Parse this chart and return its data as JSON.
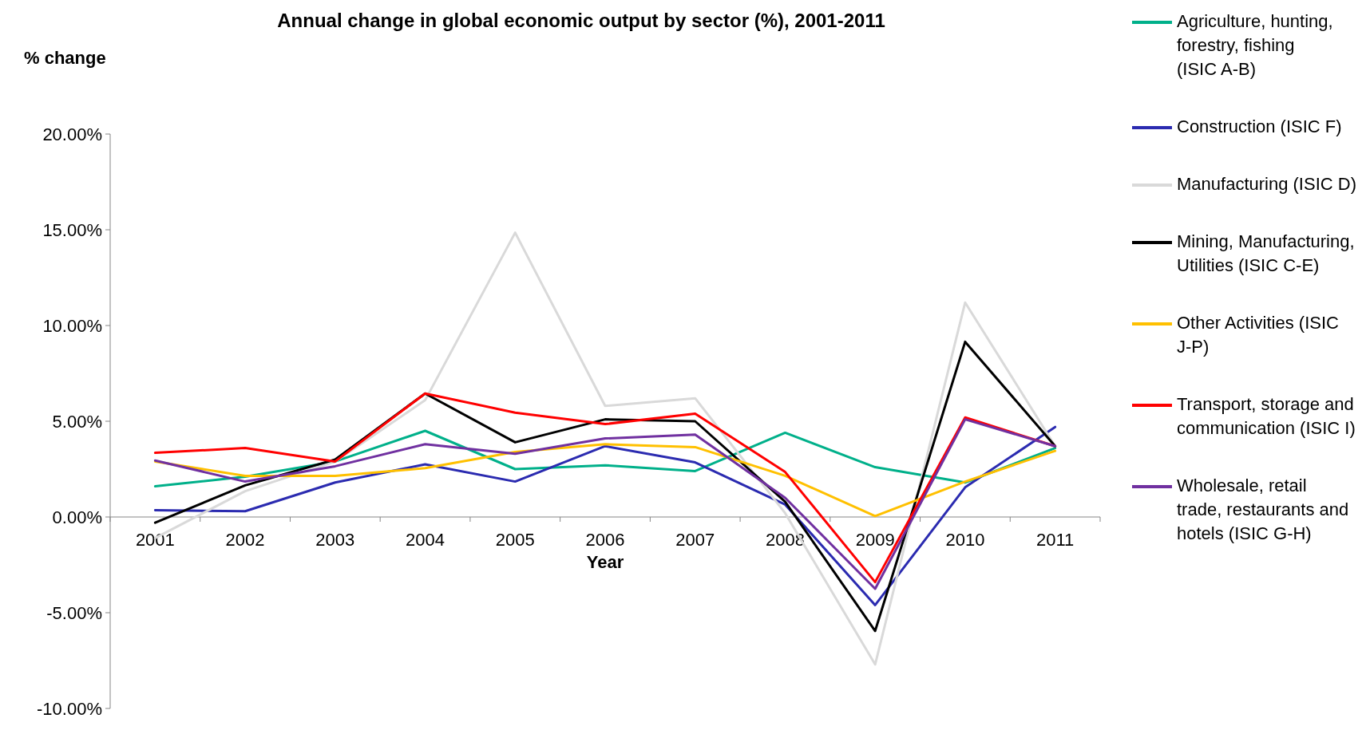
{
  "chart_data": {
    "type": "line",
    "title": "Annual change in global economic output by sector (%), 2001-2011",
    "xlabel": "Year",
    "ylabel": "% change",
    "categories": [
      "2001",
      "2002",
      "2003",
      "2004",
      "2005",
      "2006",
      "2007",
      "2008",
      "2009",
      "2010",
      "2011"
    ],
    "ylim": [
      -10,
      20
    ],
    "yticks": [
      {
        "value": -10,
        "label": "-10.00%"
      },
      {
        "value": -5,
        "label": "-5.00%"
      },
      {
        "value": 0,
        "label": "0.00%"
      },
      {
        "value": 5,
        "label": "5.00%"
      },
      {
        "value": 10,
        "label": "10.00%"
      },
      {
        "value": 15,
        "label": "15.00%"
      },
      {
        "value": 20,
        "label": "20.00%"
      }
    ],
    "grid": false,
    "legend": "right",
    "marker": "none",
    "line_style": "solid",
    "series": [
      {
        "name": "Agriculture, hunting, forestry, fishing (ISIC A-B)",
        "color": "#00b08a",
        "values": [
          1.6,
          2.1,
          2.9,
          4.5,
          2.5,
          2.7,
          2.4,
          4.4,
          2.6,
          1.8,
          3.6
        ]
      },
      {
        "name": "Construction (ISIC F)",
        "color": "#2b2bb0",
        "values": [
          0.35,
          0.3,
          1.8,
          2.75,
          1.85,
          3.7,
          2.85,
          0.65,
          -4.6,
          1.55,
          4.7
        ]
      },
      {
        "name": "Manufacturing (ISIC D)",
        "color": "#d9d9d9",
        "values": [
          -1.1,
          1.35,
          2.9,
          6.1,
          14.85,
          5.8,
          6.2,
          0.2,
          -7.7,
          11.2,
          3.7
        ]
      },
      {
        "name": "Mining, Manufacturing, Utilities (ISIC C-E)",
        "color": "#000000",
        "values": [
          -0.3,
          1.65,
          3.0,
          6.45,
          3.9,
          5.1,
          5.0,
          0.8,
          -5.95,
          9.15,
          3.7
        ]
      },
      {
        "name": "Other Activities (ISIC J-P)",
        "color": "#ffc000",
        "values": [
          2.9,
          2.15,
          2.15,
          2.55,
          3.4,
          3.8,
          3.65,
          2.15,
          0.05,
          1.85,
          3.45
        ]
      },
      {
        "name": "Transport, storage and communication (ISIC I)",
        "color": "#ff0000",
        "values": [
          3.35,
          3.6,
          2.9,
          6.45,
          5.45,
          4.85,
          5.4,
          2.35,
          -3.4,
          5.2,
          3.7
        ]
      },
      {
        "name": "Wholesale, retail trade, restaurants and hotels (ISIC G-H)",
        "color": "#7030a0",
        "values": [
          2.95,
          1.85,
          2.65,
          3.8,
          3.3,
          4.1,
          4.3,
          1.0,
          -3.75,
          5.1,
          3.7
        ]
      }
    ]
  }
}
